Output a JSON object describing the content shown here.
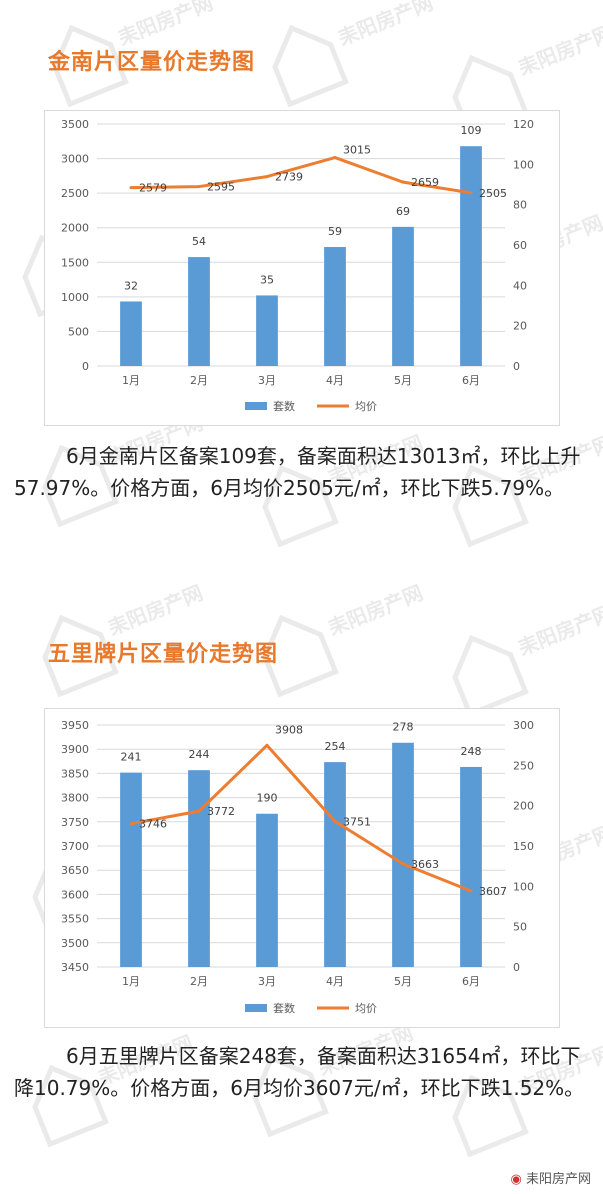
{
  "watermark": {
    "text": "耒阳房产网",
    "icon": "house-watermark-icon"
  },
  "footer": {
    "brand": "耒阳房产网",
    "icon": "weibo-icon"
  },
  "sections": [
    {
      "title": "金南片区量价走势图",
      "paragraph": "6月金南片区备案109套，备案面积达13013㎡，环比上升57.97%。价格方面，6月均价2505元/㎡，环比下跌5.79%。"
    },
    {
      "title": "五里牌片区量价走势图",
      "paragraph": "6月五里牌片区备案248套，备案面积达31654㎡，环比下降10.79%。价格方面，6月均价3607元/㎡，环比下跌1.52%。"
    }
  ],
  "colors": {
    "title": "#e8782a",
    "bar": "#5b9bd5",
    "line": "#ed7d31"
  },
  "chart_data": [
    {
      "type": "bar+line",
      "categories": [
        "1月",
        "2月",
        "3月",
        "4月",
        "5月",
        "6月"
      ],
      "series": [
        {
          "name": "套数",
          "type": "bar",
          "axis": "right",
          "values": [
            32,
            54,
            35,
            59,
            69,
            109
          ]
        },
        {
          "name": "均价",
          "type": "line",
          "axis": "left",
          "values": [
            2579,
            2595,
            2739,
            3015,
            2659,
            2505
          ]
        }
      ],
      "left_axis": {
        "min": 0,
        "max": 3500,
        "ticks": [
          0,
          500,
          1000,
          1500,
          2000,
          2500,
          3000,
          3500
        ]
      },
      "right_axis": {
        "min": 0,
        "max": 120,
        "ticks": [
          0,
          20,
          40,
          60,
          80,
          100,
          120
        ]
      },
      "grid": true,
      "legend": "bottom"
    },
    {
      "type": "bar+line",
      "categories": [
        "1月",
        "2月",
        "3月",
        "4月",
        "5月",
        "6月"
      ],
      "series": [
        {
          "name": "套数",
          "type": "bar",
          "axis": "right",
          "values": [
            241,
            244,
            190,
            254,
            278,
            248
          ]
        },
        {
          "name": "均价",
          "type": "line",
          "axis": "left",
          "values": [
            3746,
            3772,
            3908,
            3751,
            3663,
            3607
          ]
        }
      ],
      "left_axis": {
        "min": 3450,
        "max": 3950,
        "ticks": [
          3450,
          3500,
          3550,
          3600,
          3650,
          3700,
          3750,
          3800,
          3850,
          3900,
          3950
        ]
      },
      "right_axis": {
        "min": 0,
        "max": 300,
        "ticks": [
          0,
          50,
          100,
          150,
          200,
          250,
          300
        ]
      },
      "grid": true,
      "legend": "bottom"
    }
  ]
}
